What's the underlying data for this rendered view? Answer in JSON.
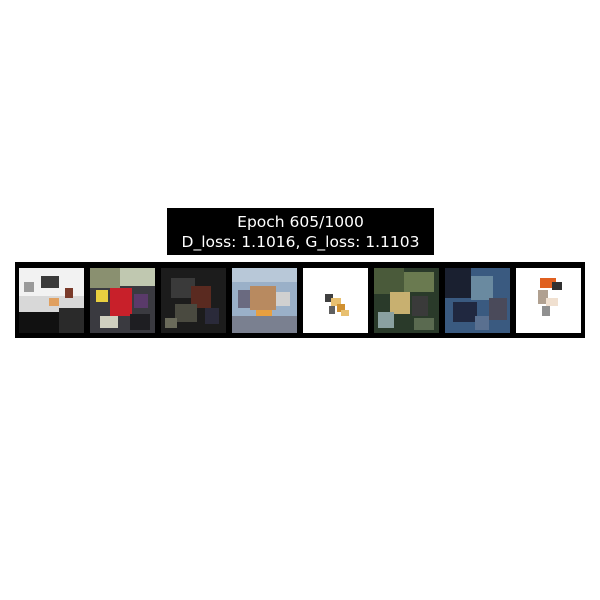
{
  "title": {
    "line1": "Epoch 605/1000",
    "line2": "D_loss: 1.1016, G_loss: 1.1103"
  },
  "samples": [
    {
      "name": "generated-sample-1",
      "colors": [
        "#f2f2f2",
        "#1a1a1a",
        "#c8c8c8",
        "#e0a060",
        "#7a3a2a"
      ]
    },
    {
      "name": "generated-sample-2",
      "colors": [
        "#2a2a30",
        "#b8c0a0",
        "#c8202a",
        "#e8d040",
        "#5a3a6a"
      ]
    },
    {
      "name": "generated-sample-3",
      "colors": [
        "#1c1c1c",
        "#3a3a3a",
        "#5a2a20",
        "#6a6a5a",
        "#2a2a3a"
      ]
    },
    {
      "name": "generated-sample-4",
      "colors": [
        "#9ab0c8",
        "#b88a60",
        "#d0d0d0",
        "#6a6a80",
        "#e8a040"
      ]
    },
    {
      "name": "generated-sample-5",
      "colors": [
        "#ffffff",
        "#e8c070",
        "#404040",
        "#f0f0f0",
        "#d09030"
      ]
    },
    {
      "name": "generated-sample-6",
      "colors": [
        "#2a3a2a",
        "#6a7a50",
        "#c8b070",
        "#3a3a3a",
        "#8aa0a0"
      ]
    },
    {
      "name": "generated-sample-7",
      "colors": [
        "#3a5a80",
        "#1a2030",
        "#6a8aa0",
        "#4a4a5a",
        "#202840"
      ]
    },
    {
      "name": "generated-sample-8",
      "colors": [
        "#ffffff",
        "#e06020",
        "#303030",
        "#f0e0d0",
        "#b0a090"
      ]
    }
  ]
}
